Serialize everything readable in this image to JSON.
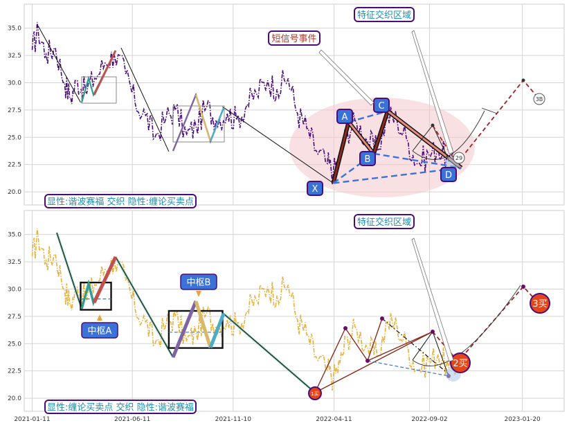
{
  "chart_data": [
    {
      "type": "line",
      "panel": "top",
      "ylim": [
        18.8,
        37.2
      ],
      "yticks": [
        20.0,
        22.5,
        25.0,
        27.5,
        30.0,
        32.5,
        35.0
      ],
      "grid": true,
      "series": [
        {
          "style": "dash-dot purple",
          "x": [
            "2021-01-11",
            "2021-01-20",
            "2021-02-01",
            "2021-02-15",
            "2021-03-01",
            "2021-03-10",
            "2021-03-20",
            "2021-04-01",
            "2021-04-15",
            "2021-05-01",
            "2021-05-15",
            "2021-06-01",
            "2021-06-15",
            "2021-07-01",
            "2021-07-15",
            "2021-08-01",
            "2021-08-15",
            "2021-09-01",
            "2021-09-15",
            "2021-10-01",
            "2021-10-15",
            "2021-11-01",
            "2021-11-15",
            "2021-12-01",
            "2021-12-15",
            "2022-01-01",
            "2022-01-15",
            "2022-02-01",
            "2022-02-15",
            "2022-03-01",
            "2022-03-15",
            "2022-04-01",
            "2022-04-10",
            "2022-04-20",
            "2022-05-01",
            "2022-05-15",
            "2022-06-01",
            "2022-06-15",
            "2022-07-01",
            "2022-07-15",
            "2022-08-01",
            "2022-08-15",
            "2022-09-01",
            "2022-09-15",
            "2022-10-01",
            "2022-10-15"
          ],
          "y": [
            33.0,
            34.8,
            32.6,
            33.2,
            30.0,
            28.6,
            30.2,
            29.2,
            30.4,
            31.8,
            32.6,
            30.8,
            28.2,
            27.0,
            25.0,
            26.8,
            27.5,
            25.2,
            26.0,
            27.8,
            26.6,
            27.2,
            26.6,
            28.0,
            29.0,
            30.2,
            29.4,
            30.4,
            27.2,
            25.8,
            23.8,
            22.6,
            21.8,
            23.2,
            25.6,
            26.4,
            24.6,
            23.8,
            27.0,
            26.6,
            24.5,
            22.6,
            23.4,
            24.0,
            22.8,
            23.0
          ]
        }
      ],
      "pattern_points": [
        {
          "label": "X",
          "x": "2022-04-10",
          "y": 20.8
        },
        {
          "label": "A",
          "x": "2022-05-03",
          "y": 26.4
        },
        {
          "label": "B",
          "x": "2022-06-10",
          "y": 23.5
        },
        {
          "label": "C",
          "x": "2022-07-01",
          "y": 27.4
        },
        {
          "label": "D",
          "x": "2022-10-20",
          "y": 22.2
        }
      ],
      "trend_segments": [
        {
          "x": [
            "2021-01-20",
            "2021-03-25"
          ],
          "y": [
            35.2,
            28.2
          ]
        },
        {
          "x": [
            "2021-05-25",
            "2021-08-05"
          ],
          "y": [
            33.2,
            23.7
          ]
        },
        {
          "x": [
            "2021-10-25",
            "2022-04-10"
          ],
          "y": [
            27.8,
            20.8
          ]
        }
      ],
      "annotations": {
        "event_label": "短信号事件",
        "zone_label": "特征交织区域",
        "circled_marks": [
          "29",
          "3B"
        ],
        "legend_text": "显性:谐波赛福 交织 隐性:缠论买卖点"
      }
    },
    {
      "type": "line",
      "panel": "bottom",
      "ylim": [
        18.8,
        37.2
      ],
      "yticks": [
        20.0,
        22.5,
        25.0,
        27.5,
        30.0,
        32.5,
        35.0
      ],
      "xticks": [
        "2021-01-11",
        "2021-06-11",
        "2021-11-10",
        "2022-04-11",
        "2022-09-02",
        "2023-01-20"
      ],
      "grid": true,
      "series": [
        {
          "style": "dash-dot gold",
          "x": [
            "2021-01-11",
            "2021-01-20",
            "2021-02-01",
            "2021-02-15",
            "2021-03-01",
            "2021-03-10",
            "2021-03-20",
            "2021-04-01",
            "2021-04-15",
            "2021-05-01",
            "2021-05-15",
            "2021-06-01",
            "2021-06-15",
            "2021-07-01",
            "2021-07-15",
            "2021-08-01",
            "2021-08-15",
            "2021-09-01",
            "2021-09-15",
            "2021-10-01",
            "2021-10-15",
            "2021-11-01",
            "2021-11-15",
            "2021-12-01",
            "2021-12-15",
            "2022-01-01",
            "2022-01-15",
            "2022-02-01",
            "2022-02-15",
            "2022-03-01",
            "2022-03-15",
            "2022-04-01",
            "2022-04-10",
            "2022-04-20",
            "2022-05-01",
            "2022-05-15",
            "2022-06-01",
            "2022-06-15",
            "2022-07-01",
            "2022-07-15",
            "2022-08-01",
            "2022-08-15",
            "2022-09-01",
            "2022-09-15",
            "2022-10-01",
            "2022-10-15"
          ],
          "y": [
            33.0,
            34.8,
            32.6,
            33.2,
            30.0,
            28.6,
            30.2,
            29.2,
            30.4,
            31.8,
            32.6,
            30.8,
            28.2,
            27.0,
            25.0,
            26.8,
            27.5,
            25.2,
            26.0,
            27.8,
            26.6,
            27.2,
            26.6,
            28.0,
            29.0,
            30.2,
            29.4,
            30.4,
            27.2,
            25.8,
            23.8,
            22.6,
            21.8,
            23.2,
            25.6,
            26.4,
            24.6,
            23.8,
            27.0,
            26.6,
            24.5,
            22.6,
            23.4,
            24.0,
            22.8,
            23.0
          ]
        }
      ],
      "pivot_zones": [
        {
          "label": "中枢A",
          "x": [
            "2021-03-25",
            "2021-05-10"
          ],
          "y": [
            28.1,
            30.6
          ]
        },
        {
          "label": "中枢B",
          "x": [
            "2021-08-05",
            "2021-10-25"
          ],
          "y": [
            24.6,
            28.0
          ]
        }
      ],
      "buy_points": [
        {
          "label": "1买",
          "x": "2022-04-10",
          "y": 20.5
        },
        {
          "label": "2买",
          "x": "2022-10-28",
          "y": 23.3
        },
        {
          "label": "3买",
          "x": "2023-02-25",
          "y": 28.8
        }
      ],
      "annotations": {
        "zone_label": "特征交织区域",
        "legend_text": "显性:缠论买卖点 交织 隐性:谐波赛福"
      }
    }
  ],
  "colors": {
    "purple": "#4b0c7a",
    "gold": "#e8b23a",
    "label_blue": "#3b72d8",
    "box_border": "#4b0c7a",
    "text_teal": "#1e8fb0",
    "dark_red": "#a11f1f",
    "ellipse": "#f4c6cc",
    "buy_fill": "#e5451b"
  }
}
